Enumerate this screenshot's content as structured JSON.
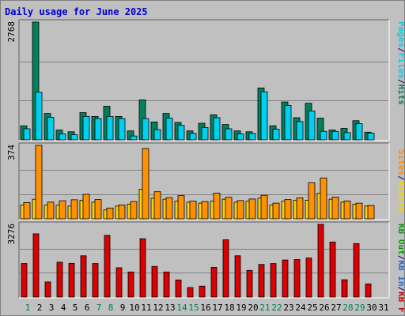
{
  "title": "Daily usage for June 2025",
  "colors": {
    "background": "#c0c0c0",
    "plot_bg": "#c0c0c0",
    "grid": "#808080",
    "title": "#0000cc",
    "hits": "#00805c",
    "files": "#00d0f0",
    "sites": "#ff9000",
    "visits": "#ffd000",
    "kbin": "#1e6ed0",
    "kbout": "#00a000",
    "kbf": "#dd0000",
    "weekend": "#00805c",
    "weekday": "#000000"
  },
  "chart_data": [
    {
      "type": "bar",
      "title": "",
      "ymax_label": "2768",
      "ylim": [
        0,
        2768
      ],
      "legend": [
        {
          "name": "Hits",
          "color": "#00805c"
        },
        {
          "name": "Files",
          "color": "#00d0f0"
        },
        {
          "name": "Pages",
          "color": "#00d0f0"
        }
      ],
      "legend_separators": [
        "/",
        "/"
      ],
      "series": [
        {
          "name": "Hits",
          "values": [
            330,
            2768,
            620,
            230,
            190,
            640,
            550,
            790,
            550,
            210,
            940,
            420,
            620,
            410,
            210,
            390,
            590,
            360,
            210,
            190,
            1220,
            330,
            890,
            520,
            860,
            510,
            230,
            270,
            450,
            180
          ]
        },
        {
          "name": "Files",
          "values": [
            260,
            1120,
            530,
            140,
            120,
            550,
            500,
            550,
            500,
            90,
            500,
            240,
            510,
            340,
            150,
            290,
            520,
            260,
            140,
            150,
            1130,
            250,
            810,
            430,
            680,
            200,
            200,
            170,
            380,
            160
          ]
        },
        {
          "name": "Pages",
          "values": [
            0,
            0,
            0,
            0,
            0,
            0,
            0,
            0,
            0,
            0,
            0,
            0,
            0,
            0,
            0,
            0,
            0,
            0,
            0,
            0,
            0,
            0,
            0,
            0,
            0,
            0,
            0,
            0,
            0,
            0
          ]
        }
      ]
    },
    {
      "type": "bar",
      "title": "",
      "ymax_label": "374",
      "ylim": [
        0,
        374
      ],
      "legend": [
        {
          "name": "Visits",
          "color": "#ffd000"
        },
        {
          "name": "Sites",
          "color": "#ff9000"
        }
      ],
      "legend_separators": [
        "/"
      ],
      "series": [
        {
          "name": "Visits",
          "values": [
            70,
            100,
            70,
            70,
            65,
            95,
            85,
            45,
            65,
            75,
            150,
            105,
            100,
            90,
            85,
            80,
            90,
            100,
            85,
            90,
            105,
            70,
            90,
            95,
            95,
            130,
            100,
            85,
            75,
            65
          ]
        },
        {
          "name": "Sites",
          "values": [
            83,
            374,
            85,
            92,
            97,
            125,
            98,
            55,
            71,
            88,
            358,
            138,
            108,
            118,
            90,
            88,
            131,
            110,
            93,
            101,
            120,
            80,
            98,
            107,
            184,
            208,
            111,
            91,
            80,
            68
          ]
        }
      ]
    },
    {
      "type": "bar",
      "title": "",
      "ymax_label": "3276",
      "ylim": [
        0,
        3276
      ],
      "legend": [
        {
          "name": "KB F",
          "color": "#dd0000"
        },
        {
          "name": "KB In",
          "color": "#1e6ed0"
        },
        {
          "name": "KB Out",
          "color": "#00a000"
        }
      ],
      "legend_separators": [
        "/",
        "/"
      ],
      "series": [
        {
          "name": "KB F",
          "values": [
            1510,
            2850,
            680,
            1570,
            1520,
            1860,
            1510,
            2780,
            1320,
            1130,
            2630,
            1380,
            1130,
            770,
            430,
            490,
            1340,
            2580,
            1860,
            1200,
            1470,
            1510,
            1670,
            1690,
            1760,
            3276,
            2480,
            780,
            2410,
            590
          ]
        }
      ]
    }
  ],
  "x_labels": [
    "1",
    "2",
    "3",
    "4",
    "5",
    "6",
    "7",
    "8",
    "9",
    "10",
    "11",
    "12",
    "13",
    "14",
    "15",
    "16",
    "17",
    "18",
    "19",
    "20",
    "21",
    "22",
    "23",
    "24",
    "25",
    "26",
    "27",
    "28",
    "29",
    "30",
    "31"
  ],
  "weekend_days": [
    1,
    7,
    8,
    14,
    15,
    21,
    22,
    28,
    29
  ]
}
